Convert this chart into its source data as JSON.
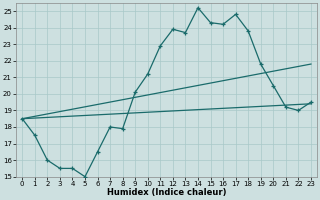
{
  "xlabel": "Humidex (Indice chaleur)",
  "xlim": [
    -0.5,
    23.5
  ],
  "ylim": [
    15,
    25.5
  ],
  "yticks": [
    15,
    16,
    17,
    18,
    19,
    20,
    21,
    22,
    23,
    24,
    25
  ],
  "xticks": [
    0,
    1,
    2,
    3,
    4,
    5,
    6,
    7,
    8,
    9,
    10,
    11,
    12,
    13,
    14,
    15,
    16,
    17,
    18,
    19,
    20,
    21,
    22,
    23
  ],
  "bg_color": "#cde0e0",
  "grid_color": "#a8c8c8",
  "line_color": "#1a6b6b",
  "line1_x": [
    0,
    1,
    2,
    3,
    4,
    5,
    6,
    7,
    8,
    9,
    10,
    11,
    12,
    13,
    14,
    15,
    16,
    17,
    18,
    19,
    20,
    21,
    22,
    23
  ],
  "line1_y": [
    18.5,
    17.5,
    16.0,
    15.5,
    15.5,
    15.0,
    16.5,
    18.0,
    17.9,
    20.1,
    21.2,
    22.9,
    23.9,
    23.7,
    25.2,
    24.3,
    24.2,
    24.8,
    23.8,
    21.8,
    20.5,
    19.2,
    19.0,
    19.5
  ],
  "line2_x": [
    0,
    23
  ],
  "line2_y": [
    18.5,
    21.8
  ],
  "line3_x": [
    0,
    23
  ],
  "line3_y": [
    18.5,
    19.4
  ]
}
